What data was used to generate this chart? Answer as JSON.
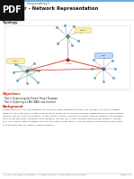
{
  "bg_color": "#ffffff",
  "pdf_text": "PDF",
  "header_bar_color": "#4a9fd4",
  "header_title": "r - Network Representation",
  "academy_text": "rking academy®",
  "section_label": "Topology",
  "objectives_title": "Objectives",
  "objectives_lines": [
    "Part 1: Examining the Packet Tracer Program",
    "Part 2: Exploring a LAN, WAN, and Internet"
  ],
  "background_title": "Background",
  "footer_text": "© 2013 Cisco and/or its affiliates. All rights reserved. This document is Cisco Public.",
  "footer_page": "Page 1 of 6",
  "node_green": "#33aa55",
  "node_blue": "#3377bb",
  "node_cyan": "#44aacc",
  "line_red": "#dd3322",
  "line_green": "#33aa55",
  "line_gray": "#999999",
  "box_yellow": "#ffeeaa",
  "box_blue_light": "#bbddff"
}
